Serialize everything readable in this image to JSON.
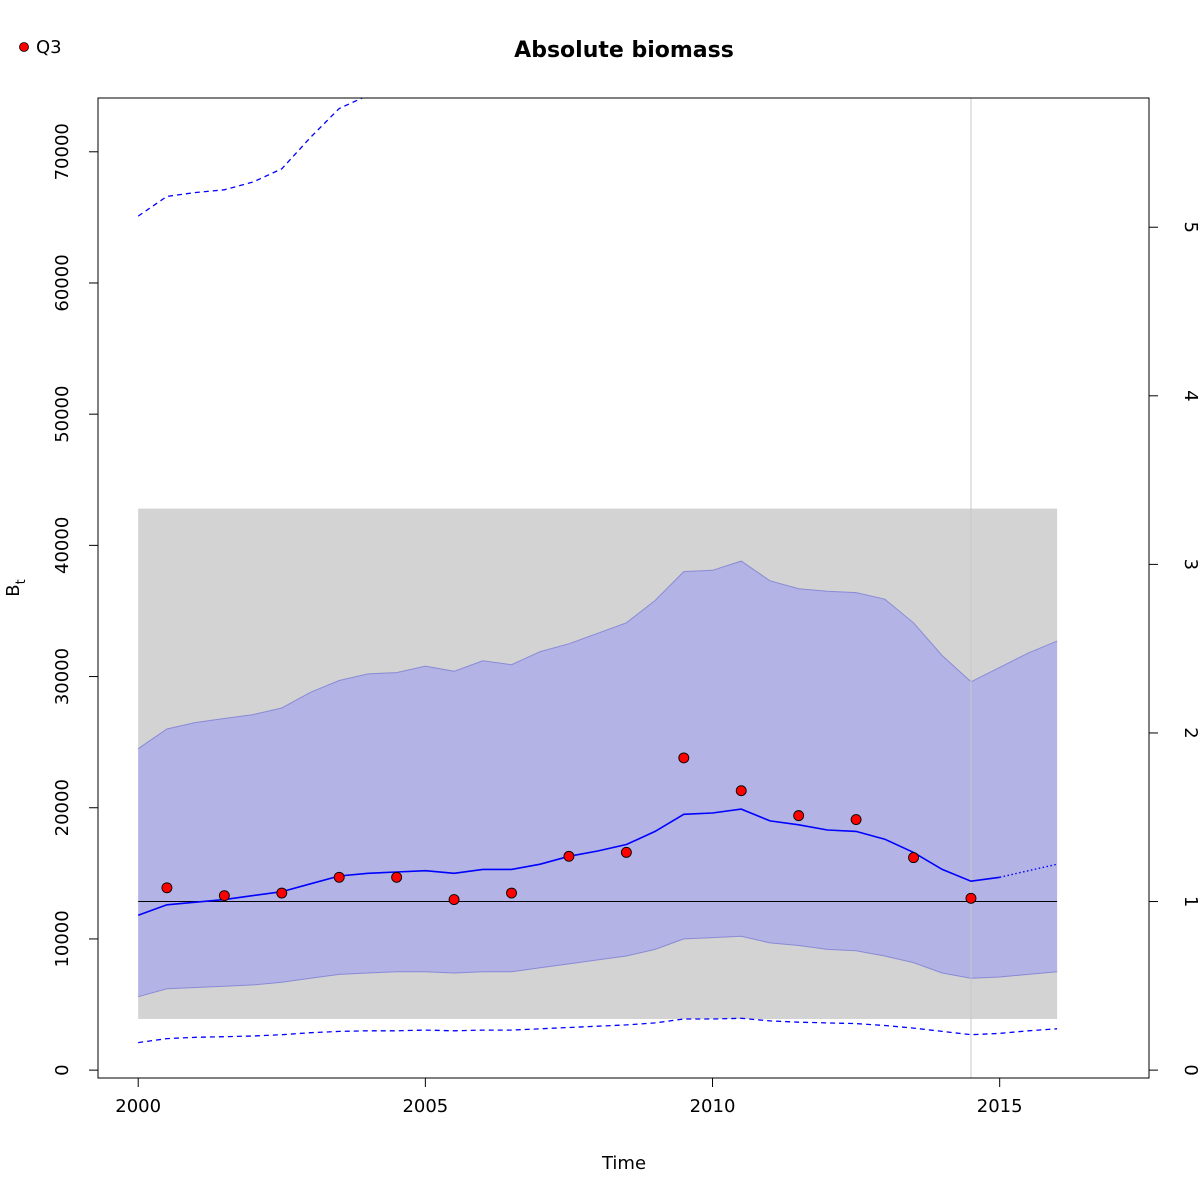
{
  "chart_data": {
    "type": "line",
    "title": "Absolute biomass",
    "xlabel": "Time",
    "ylabel_main": "B",
    "ylabel_sub": "t",
    "xlim": [
      1999.3,
      2017.6
    ],
    "ylim": [
      -600,
      74100
    ],
    "xticks": [
      "2000",
      "2005",
      "2010",
      "2015"
    ],
    "xtick_values": [
      2000,
      2005,
      2010,
      2015
    ],
    "yticks": [
      "0",
      "10000",
      "20000",
      "30000",
      "40000",
      "50000",
      "60000",
      "70000"
    ],
    "ytick_values": [
      0,
      10000,
      20000,
      30000,
      40000,
      50000,
      60000,
      70000
    ],
    "right_axis": {
      "ticks": [
        "0",
        "1",
        "2",
        "3",
        "4",
        "5"
      ],
      "tick_values": [
        0,
        1,
        2,
        3,
        4,
        5
      ],
      "scale_factor": 12850
    },
    "legend": {
      "label": "Q3",
      "placement": "top-left",
      "marker_color": "#ff0000"
    },
    "gray_region": {
      "x": [
        2000,
        2016
      ],
      "y": [
        3900,
        42800
      ],
      "color": "#d3d3d3"
    },
    "reference_hline": 12850,
    "vline_x": 2014.5,
    "colors": {
      "main": "#0000ff",
      "ci_fill": "#b3b3e6",
      "ci_border": "#8a8ad6",
      "band": "#d3d3d3",
      "points": "#ff0000",
      "vline": "#c8c8c8"
    },
    "series": [
      {
        "kind": "estimate",
        "x": [
          2000,
          2000.5,
          2001,
          2001.5,
          2002,
          2002.5,
          2003,
          2003.5,
          2004,
          2004.5,
          2005,
          2005.5,
          2006,
          2006.5,
          2007,
          2007.5,
          2008,
          2008.5,
          2009,
          2009.5,
          2010,
          2010.5,
          2011,
          2011.5,
          2012,
          2012.5,
          2013,
          2013.5,
          2014,
          2014.5,
          2015
        ],
        "y": [
          11800,
          12600,
          12800,
          13000,
          13300,
          13600,
          14200,
          14800,
          15000,
          15100,
          15200,
          15000,
          15300,
          15300,
          15700,
          16300,
          16700,
          17200,
          18200,
          19500,
          19600,
          19900,
          19000,
          18700,
          18300,
          18200,
          17600,
          16600,
          15300,
          14400,
          14700
        ]
      },
      {
        "kind": "prediction",
        "x": [
          2015,
          2015.5,
          2016
        ],
        "y": [
          14700,
          15200,
          15700
        ]
      },
      {
        "kind": "ci_upper",
        "x": [
          2000,
          2000.5,
          2001,
          2001.5,
          2002,
          2002.5,
          2003,
          2003.5,
          2004,
          2004.5,
          2005,
          2005.5,
          2006,
          2006.5,
          2007,
          2007.5,
          2008,
          2008.5,
          2009,
          2009.5,
          2010,
          2010.5,
          2011,
          2011.5,
          2012,
          2012.5,
          2013,
          2013.5,
          2014,
          2014.5,
          2015,
          2015.5,
          2016
        ],
        "y": [
          24500,
          26000,
          26500,
          26800,
          27100,
          27600,
          28800,
          29700,
          30200,
          30300,
          30800,
          30400,
          31200,
          30900,
          31900,
          32500,
          33300,
          34100,
          35800,
          38000,
          38100,
          38800,
          37300,
          36700,
          36500,
          36400,
          35900,
          34100,
          31600,
          29600,
          30700,
          31800,
          32700
        ]
      },
      {
        "kind": "ci_lower",
        "x": [
          2000,
          2000.5,
          2001,
          2001.5,
          2002,
          2002.5,
          2003,
          2003.5,
          2004,
          2004.5,
          2005,
          2005.5,
          2006,
          2006.5,
          2007,
          2007.5,
          2008,
          2008.5,
          2009,
          2009.5,
          2010,
          2010.5,
          2011,
          2011.5,
          2012,
          2012.5,
          2013,
          2013.5,
          2014,
          2014.5,
          2015,
          2015.5,
          2016
        ],
        "y": [
          5600,
          6200,
          6300,
          6400,
          6500,
          6700,
          7000,
          7300,
          7400,
          7500,
          7500,
          7400,
          7500,
          7500,
          7800,
          8100,
          8400,
          8700,
          9200,
          10000,
          10100,
          10200,
          9700,
          9500,
          9200,
          9100,
          8700,
          8200,
          7400,
          7000,
          7100,
          7300,
          7500
        ]
      },
      {
        "kind": "dashed_upper",
        "x": [
          2000,
          2000.5,
          2001,
          2001.5,
          2002,
          2002.5,
          2003,
          2003.5,
          2003.9
        ],
        "y": [
          65100,
          66600,
          66900,
          67100,
          67700,
          68700,
          71100,
          73300,
          74100
        ]
      },
      {
        "kind": "dashed_lower",
        "x": [
          2000,
          2000.5,
          2001,
          2001.5,
          2002,
          2002.5,
          2003,
          2003.5,
          2004,
          2004.5,
          2005,
          2005.5,
          2006,
          2006.5,
          2007,
          2007.5,
          2008,
          2008.5,
          2009,
          2009.5,
          2010,
          2010.5,
          2011,
          2011.5,
          2012,
          2012.5,
          2013,
          2013.5,
          2014,
          2014.5,
          2015,
          2015.5,
          2016
        ],
        "y": [
          2100,
          2400,
          2500,
          2550,
          2600,
          2700,
          2850,
          2950,
          3000,
          3000,
          3050,
          3000,
          3050,
          3050,
          3150,
          3250,
          3350,
          3450,
          3600,
          3900,
          3900,
          3950,
          3750,
          3650,
          3600,
          3550,
          3400,
          3200,
          2950,
          2700,
          2800,
          3000,
          3150
        ]
      }
    ],
    "points": {
      "name": "Q3",
      "x": [
        2000.5,
        2001.5,
        2002.5,
        2003.5,
        2004.5,
        2005.5,
        2006.5,
        2007.5,
        2008.5,
        2009.5,
        2010.5,
        2011.5,
        2012.5,
        2013.5,
        2014.5
      ],
      "y": [
        13900,
        13300,
        13500,
        14700,
        14700,
        13000,
        13500,
        16300,
        16600,
        23800,
        21300,
        19400,
        19100,
        16200,
        13100
      ]
    }
  }
}
